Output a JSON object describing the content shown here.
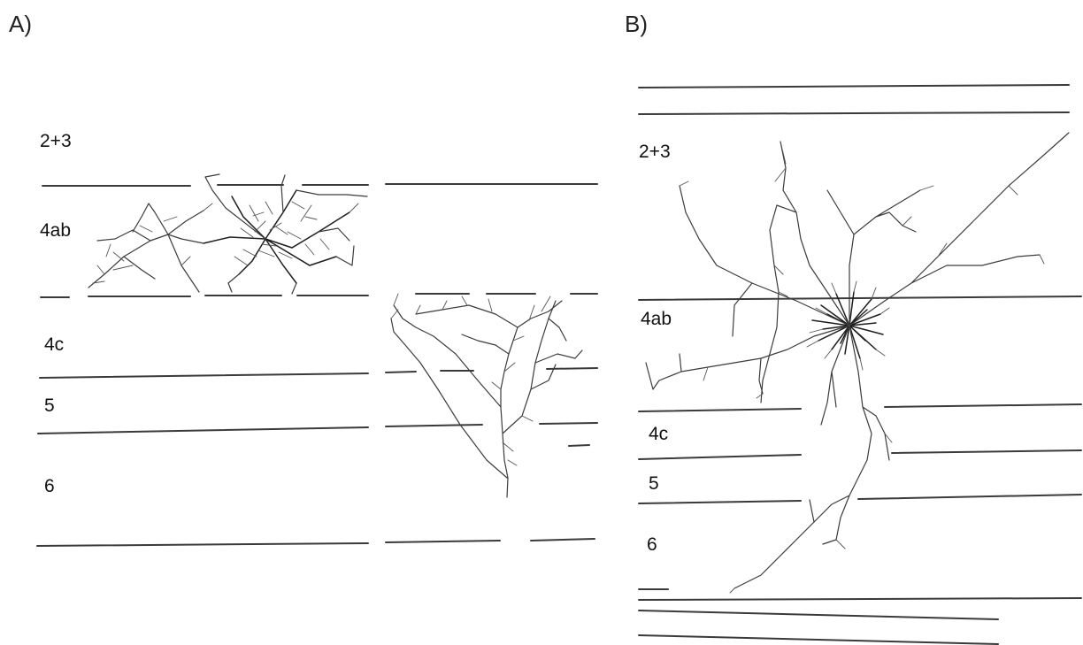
{
  "panels": [
    {
      "id": "A",
      "label": "A)",
      "layers": [
        "2+3",
        "4ab",
        "4c",
        "5",
        "6"
      ]
    },
    {
      "id": "B",
      "label": "B)",
      "layers": [
        "2+3",
        "4ab",
        "4c",
        "5",
        "6"
      ]
    }
  ]
}
